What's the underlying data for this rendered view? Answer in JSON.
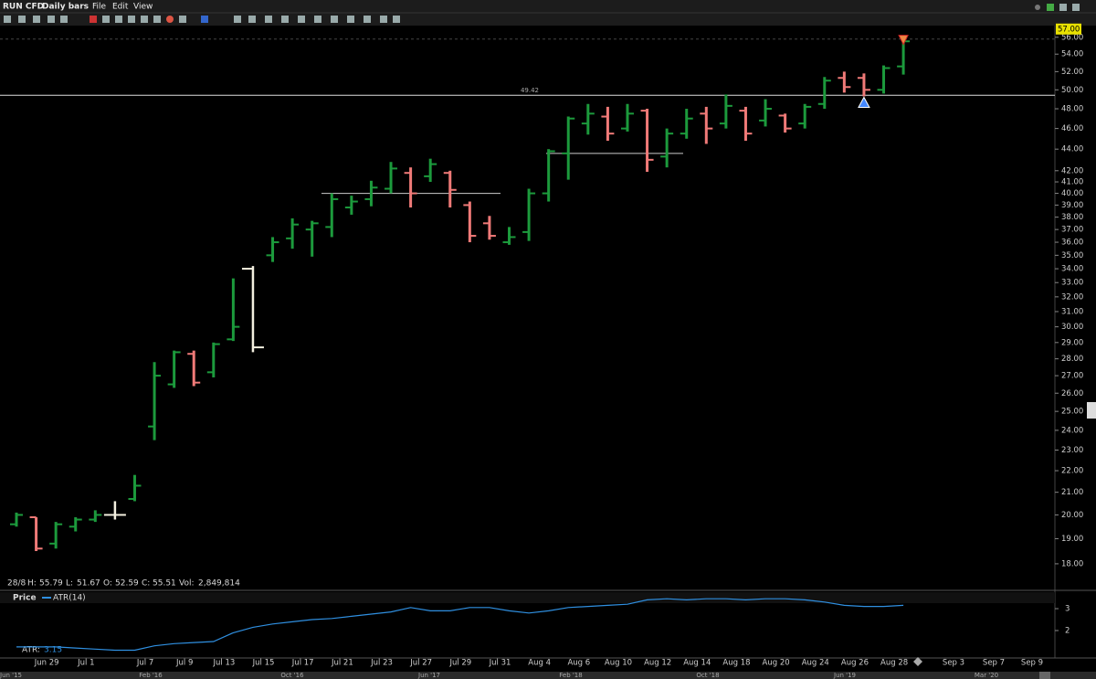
{
  "toolbar": {
    "symbol": "RUN CFD",
    "period": "Daily bars",
    "menu": [
      "File",
      "Edit",
      "View"
    ]
  },
  "chart_data": {
    "type": "ohlc",
    "categories": [
      null,
      null,
      "Jun 29",
      null,
      "Jul 1",
      null,
      null,
      "Jul 7",
      null,
      "Jul 9",
      null,
      "Jul 13",
      null,
      "Jul 15",
      null,
      "Jul 17",
      null,
      "Jul 21",
      null,
      "Jul 23",
      null,
      "Jul 27",
      null,
      "Jul 29",
      null,
      "Jul 31",
      null,
      "Aug 4",
      null,
      "Aug 6",
      null,
      "Aug 10",
      null,
      "Aug 12",
      null,
      "Aug 14",
      null,
      "Aug 18",
      null,
      "Aug 20",
      null,
      "Aug 24",
      null,
      "Aug 26",
      null,
      "Aug 28"
    ],
    "open": [
      19.6,
      19.9,
      18.8,
      19.5,
      19.8,
      20.0,
      20.7,
      24.2,
      26.5,
      28.3,
      27.2,
      29.2,
      34.0,
      35.0,
      36.3,
      37.0,
      37.2,
      38.8,
      39.5,
      40.4,
      41.8,
      41.5,
      41.8,
      39.0,
      37.5,
      36.0,
      36.8,
      40.0,
      43.6,
      46.5,
      47.2,
      46.0,
      47.8,
      43.3,
      45.5,
      47.5,
      46.5,
      47.8,
      46.8,
      47.3,
      46.5,
      48.5,
      51.3,
      51.3,
      50.0,
      52.59
    ],
    "high": [
      20.1,
      19.9,
      19.7,
      19.9,
      20.2,
      20.6,
      21.8,
      27.8,
      28.5,
      28.5,
      29.0,
      33.3,
      34.2,
      36.4,
      37.9,
      37.7,
      40.0,
      39.8,
      41.1,
      42.8,
      42.3,
      43.1,
      42.0,
      39.3,
      38.1,
      37.2,
      40.4,
      44.0,
      47.2,
      48.5,
      48.2,
      48.5,
      48.0,
      46.0,
      48.0,
      48.2,
      49.5,
      48.2,
      49.0,
      47.5,
      48.5,
      51.4,
      52.0,
      51.8,
      52.7,
      55.79
    ],
    "low": [
      19.5,
      18.5,
      18.6,
      19.3,
      19.7,
      19.8,
      20.6,
      23.5,
      26.3,
      26.4,
      26.9,
      29.1,
      28.4,
      34.5,
      35.5,
      34.9,
      36.4,
      38.2,
      38.9,
      40.0,
      38.8,
      41.0,
      38.8,
      36.0,
      36.2,
      35.8,
      36.1,
      39.3,
      41.2,
      45.4,
      44.8,
      45.7,
      41.9,
      42.3,
      45.0,
      44.5,
      46.0,
      44.8,
      46.2,
      45.6,
      46.0,
      48.0,
      49.7,
      49.3,
      49.6,
      51.67
    ],
    "close": [
      20.0,
      18.6,
      19.6,
      19.8,
      20.0,
      20.0,
      21.3,
      27.0,
      28.4,
      26.6,
      28.9,
      30.0,
      28.7,
      36.0,
      37.4,
      37.5,
      39.5,
      39.3,
      40.5,
      42.2,
      40.0,
      42.6,
      40.3,
      36.5,
      36.5,
      36.4,
      40.0,
      43.8,
      47.0,
      47.5,
      45.5,
      47.5,
      43.0,
      45.5,
      47.0,
      46.0,
      48.3,
      45.5,
      48.0,
      46.0,
      48.2,
      51.0,
      50.3,
      50.0,
      52.4,
      55.51
    ],
    "up_color": "#1c9a3c",
    "down_color": "#f07a78",
    "highlight_color": "#f4f0e0",
    "highlighted": [
      5,
      12
    ],
    "log_scale": true,
    "ylim": [
      17.2,
      57.2
    ],
    "yticks": [
      {
        "value": 18,
        "label": "18.00"
      },
      {
        "value": 19,
        "label": "19.00"
      },
      {
        "value": 20,
        "label": "20.00"
      },
      {
        "value": 21,
        "label": "21.00"
      },
      {
        "value": 22,
        "label": "22.00"
      },
      {
        "value": 23,
        "label": "23.00"
      },
      {
        "value": 24,
        "label": "24.00"
      },
      {
        "value": 25,
        "label": "25.00"
      },
      {
        "value": 26,
        "label": "26.00"
      },
      {
        "value": 27,
        "label": "27.00"
      },
      {
        "value": 28,
        "label": "28.00"
      },
      {
        "value": 29,
        "label": "29.00"
      },
      {
        "value": 30,
        "label": "30.00"
      },
      {
        "value": 31,
        "label": "31.00"
      },
      {
        "value": 32,
        "label": "32.00"
      },
      {
        "value": 33,
        "label": "33.00"
      },
      {
        "value": 34,
        "label": "34.00"
      },
      {
        "value": 35,
        "label": "35.00"
      },
      {
        "value": 36,
        "label": "36.00"
      },
      {
        "value": 37,
        "label": "37.00"
      },
      {
        "value": 38,
        "label": "38.00"
      },
      {
        "value": 39,
        "label": "39.00"
      },
      {
        "value": 40,
        "label": "40.00"
      },
      {
        "value": 41,
        "label": "41.00"
      },
      {
        "value": 42,
        "label": "42.00"
      },
      {
        "value": 44,
        "label": "44.00"
      },
      {
        "value": 46,
        "label": "46.00"
      },
      {
        "value": 48,
        "label": "48.00"
      },
      {
        "value": 50,
        "label": "50.00"
      },
      {
        "value": 52,
        "label": "52.00"
      },
      {
        "value": 54,
        "label": "54.00"
      },
      {
        "value": 56,
        "label": "56.00"
      }
    ],
    "price_tag": {
      "value": 57,
      "label": "57.00"
    },
    "level": 49.42,
    "trendlines": [
      40.0,
      43.6
    ],
    "future_dates": [
      "Sep 3",
      "Sep 7",
      "Sep 9"
    ],
    "info": {
      "date": "28/8",
      "high": "H:",
      "low": "L:",
      "open": "O:",
      "close": "C:",
      "volume": "Vol:",
      "volume_value": {
        "value": 2849814,
        "label": "2,849,814"
      }
    }
  },
  "atr_panel": {
    "type": "line",
    "tab": "Price",
    "name": "ATR(14)",
    "color": "#2f8fe0",
    "values": [
      1.25,
      1.25,
      1.25,
      1.2,
      1.15,
      1.1,
      1.1,
      1.3,
      1.4,
      1.45,
      1.5,
      1.9,
      2.15,
      2.3,
      2.4,
      2.5,
      2.55,
      2.65,
      2.75,
      2.85,
      3.05,
      2.9,
      2.9,
      3.05,
      3.05,
      2.9,
      2.8,
      2.9,
      3.05,
      3.1,
      3.15,
      3.2,
      3.4,
      3.45,
      3.4,
      3.45,
      3.45,
      3.4,
      3.45,
      3.45,
      3.4,
      3.3,
      3.15,
      3.1,
      3.1,
      3.15
    ],
    "ylim": [
      0.83,
      3.46
    ],
    "yticks": [
      2,
      3
    ],
    "current_label": "ATR:",
    "current": 3.15
  },
  "timeline": [
    "Jun '15",
    "Feb '16",
    "Oct '16",
    "Jun '17",
    "Feb '18",
    "Oct '18",
    "Jun '19",
    "Mar '20"
  ]
}
